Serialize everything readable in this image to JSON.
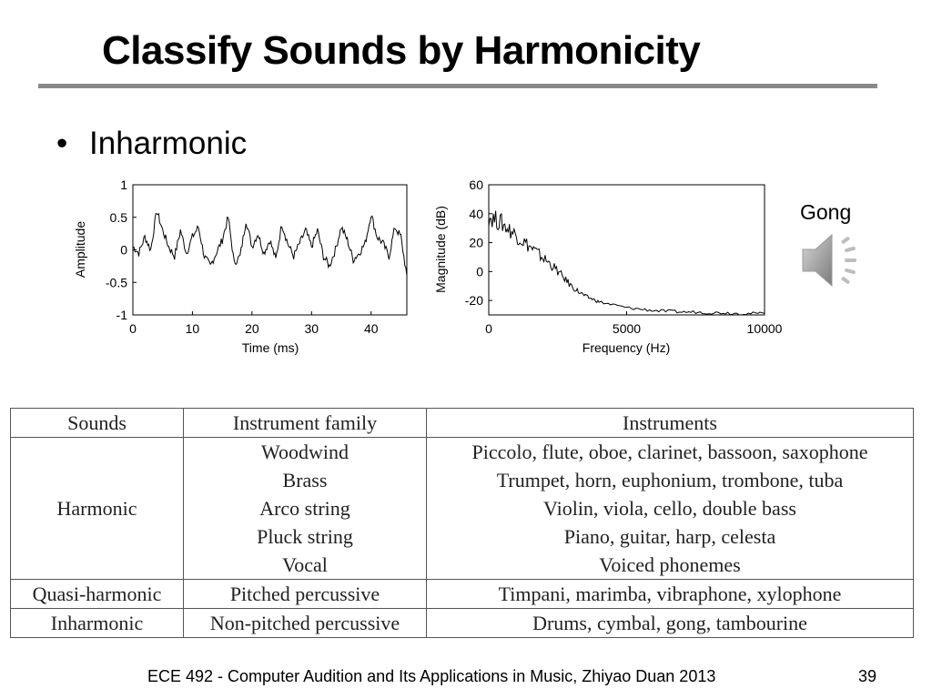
{
  "slide": {
    "title": "Classify Sounds by Harmonicity",
    "bullet": "Inharmonic",
    "bullet_marker": "•",
    "media_label": "Gong",
    "media_icon": "speaker-icon",
    "footer": "ECE 492 - Computer Audition and Its Applications in Music, Zhiyao Duan 2013",
    "page_number": "39"
  },
  "chart_data": [
    {
      "type": "line",
      "title": "",
      "xlabel": "Time (ms)",
      "ylabel": "Amplitude",
      "xlim": [
        0,
        46
      ],
      "ylim": [
        -1,
        1
      ],
      "x_ticks": [
        "0",
        "10",
        "20",
        "30",
        "40"
      ],
      "y_ticks": [
        "1",
        "0.5",
        "0",
        "-0.5",
        "-1"
      ],
      "grid": false,
      "x": [
        0,
        1,
        2,
        3,
        4,
        5,
        6,
        7,
        8,
        9,
        10,
        11,
        12,
        13,
        14,
        15,
        16,
        17,
        18,
        19,
        20,
        21,
        22,
        23,
        24,
        25,
        26,
        27,
        28,
        29,
        30,
        31,
        32,
        33,
        34,
        35,
        36,
        37,
        38,
        39,
        40,
        41,
        42,
        43,
        44,
        45,
        46
      ],
      "values": [
        0.05,
        -0.05,
        0.2,
        0.0,
        0.6,
        0.3,
        0.05,
        -0.1,
        0.3,
        -0.05,
        0.2,
        0.35,
        -0.1,
        -0.25,
        -0.05,
        0.15,
        0.5,
        -0.2,
        -0.1,
        0.45,
        0.05,
        0.25,
        -0.05,
        0.15,
        -0.15,
        0.4,
        0.1,
        -0.1,
        0.1,
        0.3,
        0.05,
        0.3,
        -0.1,
        -0.25,
        0.0,
        0.35,
        0.15,
        -0.15,
        -0.05,
        0.1,
        0.55,
        0.2,
        0.1,
        -0.1,
        0.35,
        0.2,
        -0.4
      ]
    },
    {
      "type": "line",
      "title": "",
      "xlabel": "Frequency (Hz)",
      "ylabel": "Magnitude (dB)",
      "xlim": [
        0,
        10000
      ],
      "ylim": [
        -30,
        60
      ],
      "x_ticks": [
        "0",
        "5000",
        "10000"
      ],
      "y_ticks": [
        "60",
        "40",
        "20",
        "0",
        "-20"
      ],
      "grid": false,
      "x": [
        0,
        250,
        500,
        750,
        1000,
        1250,
        1500,
        1750,
        2000,
        2250,
        2500,
        2750,
        3000,
        3250,
        3500,
        3750,
        4000,
        4500,
        5000,
        5500,
        6000,
        6500,
        7000,
        7500,
        8000,
        8500,
        9000,
        9500,
        10000
      ],
      "values": [
        38,
        36,
        33,
        29,
        25,
        21,
        17,
        13,
        9,
        5,
        0,
        -5,
        -10,
        -14,
        -17,
        -19,
        -21,
        -23,
        -25,
        -26,
        -27,
        -27.5,
        -28,
        -28,
        -28.5,
        -28.5,
        -29,
        -29,
        -29
      ]
    }
  ],
  "table": {
    "headers": [
      "Sounds",
      "Instrument family",
      "Instruments"
    ],
    "groups": [
      {
        "sound": "Harmonic",
        "families": [
          "Woodwind",
          "Brass",
          "Arco string",
          "Pluck string",
          "Vocal"
        ],
        "instruments": [
          "Piccolo, flute, oboe, clarinet, bassoon, saxophone",
          "Trumpet, horn, euphonium, trombone, tuba",
          "Violin, viola, cello, double bass",
          "Piano, guitar, harp, celesta",
          "Voiced phonemes"
        ]
      },
      {
        "sound": "Quasi-harmonic",
        "families": [
          "Pitched percussive"
        ],
        "instruments": [
          "Timpani, marimba, vibraphone, xylophone"
        ]
      },
      {
        "sound": "Inharmonic",
        "families": [
          "Non-pitched percussive"
        ],
        "instruments": [
          "Drums, cymbal, gong, tambourine"
        ]
      }
    ]
  }
}
